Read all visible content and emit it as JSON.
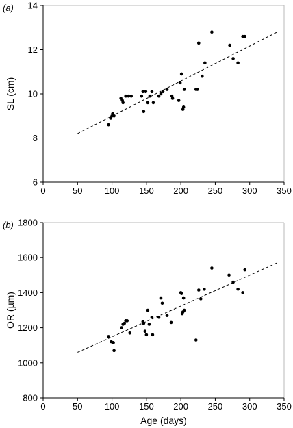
{
  "chart_data": [
    {
      "panel_label": "(a)",
      "type": "scatter",
      "title": "",
      "xlabel": "",
      "ylabel": "SL (cm)",
      "xlim": [
        0,
        350
      ],
      "ylim": [
        6,
        14
      ],
      "xticks": [
        0,
        50,
        100,
        150,
        200,
        250,
        300,
        350
      ],
      "yticks": [
        6,
        8,
        10,
        12,
        14
      ],
      "grid": false,
      "trendline": {
        "style": "dashed",
        "x": [
          50,
          340
        ],
        "y": [
          8.2,
          12.8
        ]
      },
      "points": [
        {
          "x": 95,
          "y": 8.6
        },
        {
          "x": 98,
          "y": 8.9
        },
        {
          "x": 100,
          "y": 9.0
        },
        {
          "x": 101,
          "y": 9.1
        },
        {
          "x": 103,
          "y": 9.0
        },
        {
          "x": 113,
          "y": 9.8
        },
        {
          "x": 115,
          "y": 9.7
        },
        {
          "x": 116,
          "y": 9.6
        },
        {
          "x": 120,
          "y": 9.9
        },
        {
          "x": 124,
          "y": 9.9
        },
        {
          "x": 128,
          "y": 9.9
        },
        {
          "x": 143,
          "y": 9.9
        },
        {
          "x": 145,
          "y": 10.1
        },
        {
          "x": 146,
          "y": 9.2
        },
        {
          "x": 149,
          "y": 10.1
        },
        {
          "x": 152,
          "y": 9.6
        },
        {
          "x": 155,
          "y": 9.9
        },
        {
          "x": 158,
          "y": 10.1
        },
        {
          "x": 160,
          "y": 9.6
        },
        {
          "x": 168,
          "y": 9.9
        },
        {
          "x": 171,
          "y": 10.0
        },
        {
          "x": 174,
          "y": 10.1
        },
        {
          "x": 180,
          "y": 10.2
        },
        {
          "x": 187,
          "y": 9.9
        },
        {
          "x": 188,
          "y": 9.8
        },
        {
          "x": 197,
          "y": 9.7
        },
        {
          "x": 199,
          "y": 10.5
        },
        {
          "x": 201,
          "y": 10.9
        },
        {
          "x": 203,
          "y": 9.3
        },
        {
          "x": 204,
          "y": 9.4
        },
        {
          "x": 205,
          "y": 10.2
        },
        {
          "x": 222,
          "y": 10.2
        },
        {
          "x": 224,
          "y": 10.2
        },
        {
          "x": 226,
          "y": 12.3
        },
        {
          "x": 231,
          "y": 10.8
        },
        {
          "x": 235,
          "y": 11.4
        },
        {
          "x": 245,
          "y": 12.8
        },
        {
          "x": 271,
          "y": 12.2
        },
        {
          "x": 276,
          "y": 11.6
        },
        {
          "x": 283,
          "y": 11.4
        },
        {
          "x": 290,
          "y": 12.6
        },
        {
          "x": 293,
          "y": 12.6
        }
      ]
    },
    {
      "panel_label": "(b)",
      "type": "scatter",
      "title": "",
      "xlabel": "Age (days)",
      "ylabel": "OR (µm)",
      "xlim": [
        0,
        350
      ],
      "ylim": [
        800,
        1800
      ],
      "xticks": [
        0,
        50,
        100,
        150,
        200,
        250,
        300,
        350
      ],
      "yticks": [
        800,
        1000,
        1200,
        1400,
        1600,
        1800
      ],
      "grid": false,
      "trendline": {
        "style": "dashed",
        "x": [
          50,
          340
        ],
        "y": [
          1060,
          1570
        ]
      },
      "points": [
        {
          "x": 95,
          "y": 1150
        },
        {
          "x": 99,
          "y": 1120
        },
        {
          "x": 102,
          "y": 1115
        },
        {
          "x": 103,
          "y": 1070
        },
        {
          "x": 114,
          "y": 1200
        },
        {
          "x": 116,
          "y": 1220
        },
        {
          "x": 118,
          "y": 1225
        },
        {
          "x": 120,
          "y": 1240
        },
        {
          "x": 122,
          "y": 1240
        },
        {
          "x": 126,
          "y": 1170
        },
        {
          "x": 145,
          "y": 1235
        },
        {
          "x": 146,
          "y": 1225
        },
        {
          "x": 148,
          "y": 1180
        },
        {
          "x": 150,
          "y": 1160
        },
        {
          "x": 152,
          "y": 1300
        },
        {
          "x": 154,
          "y": 1220
        },
        {
          "x": 158,
          "y": 1260
        },
        {
          "x": 159,
          "y": 1160
        },
        {
          "x": 168,
          "y": 1260
        },
        {
          "x": 171,
          "y": 1370
        },
        {
          "x": 173,
          "y": 1340
        },
        {
          "x": 180,
          "y": 1270
        },
        {
          "x": 186,
          "y": 1230
        },
        {
          "x": 200,
          "y": 1400
        },
        {
          "x": 201,
          "y": 1395
        },
        {
          "x": 202,
          "y": 1280
        },
        {
          "x": 203,
          "y": 1290
        },
        {
          "x": 204,
          "y": 1370
        },
        {
          "x": 205,
          "y": 1300
        },
        {
          "x": 222,
          "y": 1130
        },
        {
          "x": 226,
          "y": 1415
        },
        {
          "x": 229,
          "y": 1365
        },
        {
          "x": 234,
          "y": 1420
        },
        {
          "x": 245,
          "y": 1540
        },
        {
          "x": 270,
          "y": 1500
        },
        {
          "x": 276,
          "y": 1460
        },
        {
          "x": 283,
          "y": 1420
        },
        {
          "x": 290,
          "y": 1400
        },
        {
          "x": 293,
          "y": 1530
        }
      ]
    }
  ]
}
